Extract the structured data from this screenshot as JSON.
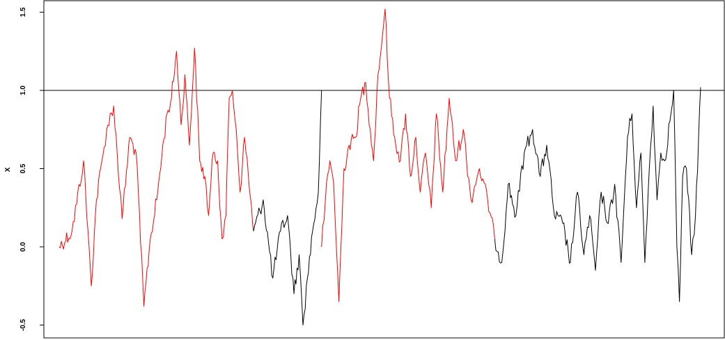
{
  "chart_data": {
    "type": "line",
    "title": "",
    "xlabel": "",
    "ylabel": "X",
    "ylim": [
      -0.57,
      1.6
    ],
    "yticks": [
      -0.5,
      0.0,
      0.5,
      1.0,
      1.5
    ],
    "ytick_labels": [
      "-0.5",
      "0.0",
      "0.5",
      "1.0",
      "1.5"
    ],
    "reference_line": {
      "y": 1.0,
      "color": "#000000"
    },
    "colors": {
      "below_threshold": "#000000",
      "above_threshold": "#ff0000"
    },
    "series": [
      {
        "color": "#ff0000",
        "x": [
          0.0,
          0.02,
          0.038,
          0.05,
          0.058,
          0.068,
          0.074,
          0.085,
          0.098,
          0.11,
          0.12,
          0.132,
          0.142,
          0.152,
          0.16,
          0.168,
          0.175,
          0.183,
          0.19,
          0.196,
          0.203,
          0.211,
          0.219,
          0.227,
          0.233,
          0.24,
          0.247,
          0.254,
          0.26,
          0.265,
          0.27,
          0.276,
          0.282,
          0.289,
          0.295,
          0.303
        ],
        "y": [
          0.0,
          0.1,
          0.55,
          -0.25,
          0.3,
          0.58,
          0.75,
          0.9,
          0.18,
          0.7,
          0.6,
          -0.38,
          0.05,
          0.3,
          0.58,
          0.85,
          0.95,
          1.25,
          0.78,
          1.1,
          0.65,
          1.27,
          0.55,
          0.45,
          0.2,
          0.6,
          0.55,
          0.05,
          0.2,
          0.95,
          1.0,
          0.75,
          0.35,
          0.7,
          0.45,
          0.1
        ]
      },
      {
        "color": "#000000",
        "x": [
          0.303,
          0.318,
          0.333,
          0.345,
          0.356,
          0.366,
          0.374,
          0.38,
          0.387,
          0.395,
          0.404,
          0.409
        ],
        "y": [
          0.1,
          0.3,
          -0.2,
          0.1,
          0.2,
          -0.3,
          -0.05,
          -0.5,
          -0.2,
          0.1,
          0.35,
          1.0
        ]
      },
      {
        "color": "#ff0000",
        "x": [
          0.409,
          0.415,
          0.422,
          0.428,
          0.436,
          0.444,
          0.452,
          0.462,
          0.47,
          0.478,
          0.485,
          0.49,
          0.497,
          0.504,
          0.508,
          0.515,
          0.523,
          0.532,
          0.54,
          0.548,
          0.556,
          0.563,
          0.571,
          0.58,
          0.588,
          0.598,
          0.608,
          0.618,
          0.63,
          0.642,
          0.655,
          0.668,
          0.679
        ],
        "y": [
          0.0,
          0.3,
          0.55,
          0.4,
          -0.35,
          0.5,
          0.65,
          0.7,
          0.95,
          1.05,
          0.75,
          0.55,
          1.1,
          1.35,
          1.52,
          0.95,
          0.7,
          0.55,
          0.85,
          0.45,
          0.7,
          0.35,
          0.6,
          0.25,
          0.85,
          0.35,
          0.95,
          0.55,
          0.75,
          0.3,
          0.5,
          0.3,
          0.05
        ]
      },
      {
        "color": "#000000",
        "x": [
          0.679,
          0.69,
          0.7,
          0.712,
          0.725,
          0.738,
          0.75,
          0.76,
          0.772,
          0.785,
          0.797,
          0.808,
          0.818,
          0.827,
          0.836,
          0.845,
          0.856,
          0.866,
          0.876,
          0.886,
          0.893,
          0.9,
          0.907,
          0.913,
          0.92,
          0.926,
          0.932,
          0.938,
          0.944,
          0.952,
          0.958,
          0.963,
          0.967,
          0.972,
          0.978,
          0.986,
          0.992,
          1.0
        ],
        "y": [
          0.05,
          -0.1,
          0.4,
          0.2,
          0.6,
          0.75,
          0.45,
          0.65,
          0.2,
          0.15,
          -0.1,
          0.35,
          -0.05,
          0.2,
          -0.15,
          0.35,
          0.15,
          0.4,
          -0.1,
          0.7,
          0.85,
          0.25,
          0.6,
          -0.1,
          0.5,
          0.9,
          0.3,
          0.6,
          0.55,
          0.8,
          1.0,
          0.0,
          -0.35,
          0.45,
          0.5,
          -0.05,
          0.2,
          1.02
        ]
      }
    ]
  }
}
